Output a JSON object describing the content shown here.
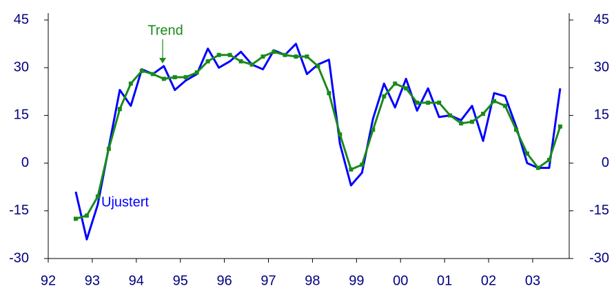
{
  "chart_data": {
    "type": "line",
    "annotations": [
      "Trend",
      "Ujustert"
    ],
    "x": [
      1992.625,
      1992.875,
      1993.125,
      1993.375,
      1993.625,
      1993.875,
      1994.125,
      1994.375,
      1994.625,
      1994.875,
      1995.125,
      1995.375,
      1995.625,
      1995.875,
      1996.125,
      1996.375,
      1996.625,
      1996.875,
      1997.125,
      1997.375,
      1997.625,
      1997.875,
      1998.125,
      1998.375,
      1998.625,
      1998.875,
      1999.125,
      1999.375,
      1999.625,
      1999.875,
      2000.125,
      2000.375,
      2000.625,
      2000.875,
      2001.125,
      2001.375,
      2001.625,
      2001.875,
      2002.125,
      2002.375,
      2002.625,
      2002.875,
      2003.125,
      2003.375,
      2003.625
    ],
    "series": [
      {
        "name": "Ujustert",
        "color": "#0000ff",
        "values": [
          -9,
          -24,
          -13,
          5,
          23,
          18,
          29.5,
          28,
          30.5,
          23,
          26,
          28,
          36,
          30,
          32,
          35,
          31,
          29.5,
          35.5,
          34,
          37.5,
          28,
          31,
          32.5,
          6,
          -7,
          -3,
          14,
          25,
          17.5,
          26.5,
          16.5,
          23.5,
          14.5,
          15,
          13.5,
          18,
          7,
          22,
          21,
          11.5,
          0,
          -1.5,
          -1.5,
          23.5
        ]
      },
      {
        "name": "Trend",
        "color": "#1a8a1a",
        "markers": true,
        "values": [
          -17.5,
          -16.5,
          -10.5,
          4.5,
          17,
          25,
          29,
          28,
          26.5,
          27,
          27,
          28.5,
          32,
          34,
          34,
          32,
          31,
          33.5,
          35,
          34,
          33.5,
          33.5,
          30.5,
          22,
          9,
          -2,
          -0.5,
          10.5,
          21,
          25,
          23.5,
          19,
          19,
          19,
          15,
          12.5,
          13,
          15.5,
          19.5,
          18,
          10.5,
          3,
          -1.5,
          1,
          11.5
        ]
      }
    ],
    "xlim": [
      1992,
      2003.83
    ],
    "xticks": [
      {
        "value": 1992,
        "label": "92"
      },
      {
        "value": 1993,
        "label": "93"
      },
      {
        "value": 1994,
        "label": "94"
      },
      {
        "value": 1995,
        "label": "95"
      },
      {
        "value": 1996,
        "label": "96"
      },
      {
        "value": 1997,
        "label": "97"
      },
      {
        "value": 1998,
        "label": "98"
      },
      {
        "value": 1999,
        "label": "99"
      },
      {
        "value": 2000,
        "label": "00"
      },
      {
        "value": 2001,
        "label": "01"
      },
      {
        "value": 2002,
        "label": "02"
      },
      {
        "value": 2003,
        "label": "03"
      }
    ],
    "ylim": [
      -30,
      45
    ],
    "yticks": [
      -30,
      -15,
      0,
      15,
      30,
      45
    ],
    "y2lim": [
      -30,
      45
    ],
    "y2ticks": [
      -30,
      -15,
      0,
      15,
      30,
      45
    ],
    "grid": false
  }
}
